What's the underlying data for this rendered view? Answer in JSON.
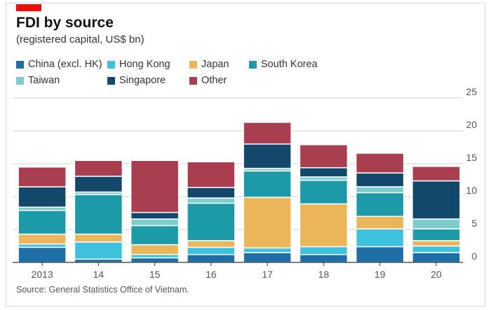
{
  "header": {
    "title": "FDI by source",
    "subtitle": "(registered capital, US$ bn)"
  },
  "source": "Source: General Statistics Office of Vietnam.",
  "colors": {
    "brand": "#e3120b",
    "grid": "#d0d0d0",
    "axis": "#333333"
  },
  "chart_data": {
    "type": "bar",
    "stacked": true,
    "categories": [
      "2013",
      "14",
      "15",
      "16",
      "17",
      "18",
      "19",
      "20"
    ],
    "ylim": [
      0,
      25
    ],
    "yticks": [
      0,
      5,
      10,
      15,
      20,
      25
    ],
    "grid": true,
    "legend": "top",
    "series": [
      {
        "name": "China (excl. HK)",
        "color": "#1f6fa6",
        "values": [
          2.3,
          0.5,
          0.7,
          1.2,
          1.5,
          1.2,
          2.4,
          1.5
        ]
      },
      {
        "name": "Hong Kong",
        "color": "#3ec1dd",
        "values": [
          0.5,
          2.6,
          0.5,
          1.1,
          0.7,
          1.2,
          2.7,
          1.0
        ]
      },
      {
        "name": "Japan",
        "color": "#ebb559",
        "values": [
          1.5,
          1.2,
          1.5,
          1.0,
          7.7,
          6.5,
          1.9,
          0.8
        ]
      },
      {
        "name": "South Korea",
        "color": "#1d9aa8",
        "values": [
          3.6,
          6.0,
          2.9,
          5.7,
          4.0,
          3.6,
          3.6,
          1.8
        ]
      },
      {
        "name": "Taiwan",
        "color": "#7ccdcc",
        "values": [
          0.5,
          0.4,
          1.0,
          0.8,
          0.4,
          0.5,
          0.9,
          1.5
        ]
      },
      {
        "name": "Singapore",
        "color": "#13486b",
        "values": [
          3.1,
          2.4,
          1.0,
          1.6,
          3.7,
          1.4,
          2.1,
          5.8
        ]
      },
      {
        "name": "Other",
        "color": "#a83e4f",
        "values": [
          3.0,
          2.4,
          7.9,
          3.9,
          3.3,
          3.5,
          3.0,
          2.2
        ]
      }
    ]
  }
}
